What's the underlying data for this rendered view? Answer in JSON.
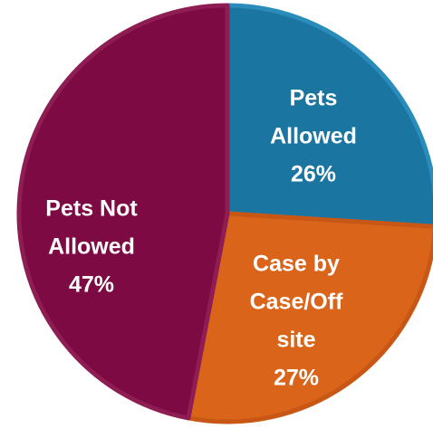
{
  "chart_data": {
    "type": "pie",
    "slices": [
      {
        "label_lines": [
          "Pets",
          "Allowed"
        ],
        "pct_label": "26%",
        "value": 26,
        "color": "#1a75a0",
        "border": "#2a8cba"
      },
      {
        "label_lines": [
          "Case by",
          "Case/Off",
          "site"
        ],
        "pct_label": "27%",
        "value": 27,
        "color": "#d9641a",
        "border": "#c85715"
      },
      {
        "label_lines": [
          "Pets Not",
          "Allowed"
        ],
        "pct_label": "47%",
        "value": 47,
        "color": "#7d0a42",
        "border": "#8e1d53"
      }
    ],
    "start_angle_deg": 0,
    "direction": "clockwise",
    "legend": "none"
  }
}
